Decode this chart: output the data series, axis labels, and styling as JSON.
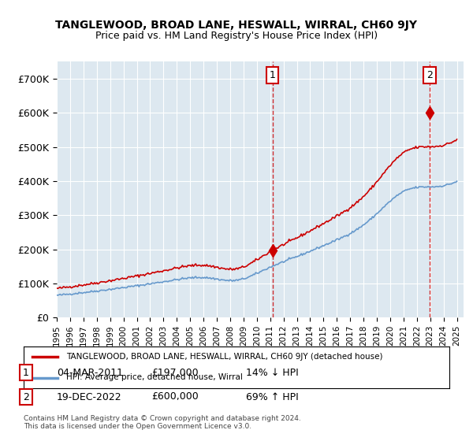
{
  "title1": "TANGLEWOOD, BROAD LANE, HESWALL, WIRRAL, CH60 9JY",
  "title2": "Price paid vs. HM Land Registry's House Price Index (HPI)",
  "ylabel_ticks": [
    "£0",
    "£100K",
    "£200K",
    "£300K",
    "£400K",
    "£500K",
    "£600K",
    "£700K"
  ],
  "ytick_vals": [
    0,
    100000,
    200000,
    300000,
    400000,
    500000,
    600000,
    700000
  ],
  "ylim": [
    0,
    750000
  ],
  "xlim_start": 1995.0,
  "xlim_end": 2025.5,
  "xtick_years": [
    1995,
    1996,
    1997,
    1998,
    1999,
    2000,
    2001,
    2002,
    2003,
    2004,
    2005,
    2006,
    2007,
    2008,
    2009,
    2010,
    2011,
    2012,
    2013,
    2014,
    2015,
    2016,
    2017,
    2018,
    2019,
    2020,
    2021,
    2022,
    2023,
    2024,
    2025
  ],
  "sale1_x": 2011.17,
  "sale1_y": 197000,
  "sale2_x": 2022.96,
  "sale2_y": 600000,
  "sale_color": "#cc0000",
  "hpi_color": "#6699cc",
  "background_color": "#dde8f0",
  "plot_bg": "#dde8f0",
  "legend_label1": "TANGLEWOOD, BROAD LANE, HESWALL, WIRRAL, CH60 9JY (detached house)",
  "legend_label2": "HPI: Average price, detached house, Wirral",
  "annotation1_label": "1",
  "annotation2_label": "2",
  "table_row1": [
    "1",
    "04-MAR-2011",
    "£197,000",
    "14% ↓ HPI"
  ],
  "table_row2": [
    "2",
    "19-DEC-2022",
    "£600,000",
    "69% ↑ HPI"
  ],
  "footnote": "Contains HM Land Registry data © Crown copyright and database right 2024.\nThis data is licensed under the Open Government Licence v3.0."
}
